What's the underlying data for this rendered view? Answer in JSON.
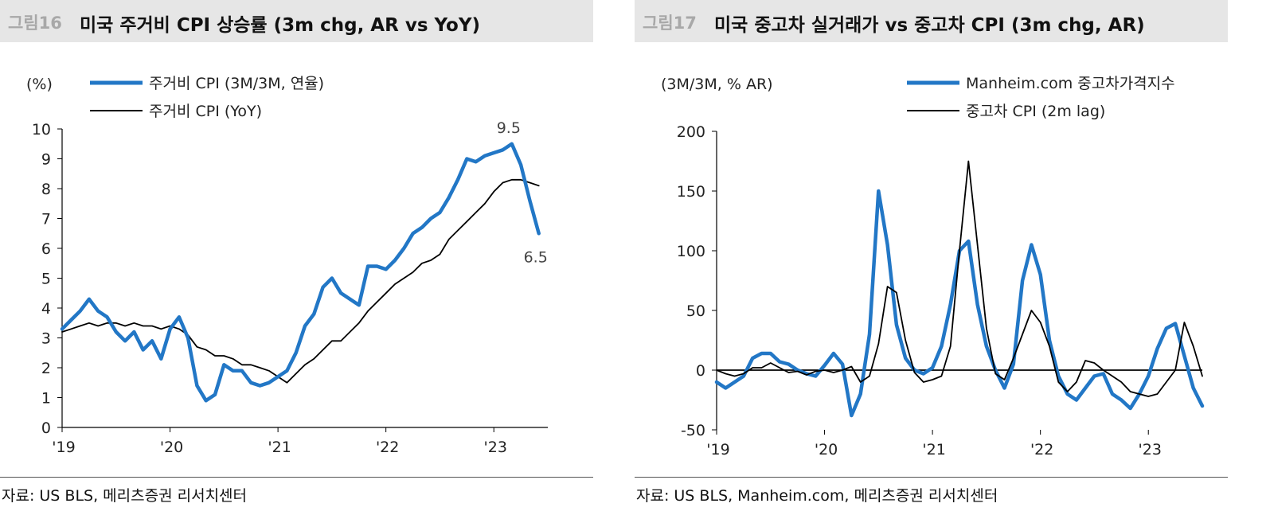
{
  "charts": [
    {
      "figure_number": "그림16",
      "title": "미국 주거비 CPI 상승률 (3m chg, AR vs YoY)",
      "unit_label": "(%)",
      "source": "자료: US BLS, 메리츠증권 리서치센터",
      "colors": {
        "series1": "#2277c6",
        "series2": "#000000"
      }
    },
    {
      "figure_number": "그림17",
      "title": "미국 중고차 실거래가 vs 중고차 CPI (3m chg, AR)",
      "unit_label": "(3M/3M, % AR)",
      "source": "자료: US BLS, Manheim.com, 메리츠증권 리서치센터",
      "colors": {
        "series1": "#2277c6",
        "series2": "#000000"
      }
    }
  ],
  "chart_data": [
    {
      "type": "line",
      "x_tick_labels": [
        "'19",
        "'20",
        "'21",
        "'22",
        "'23"
      ],
      "x_start": "2019-01",
      "ylim": [
        0,
        10
      ],
      "yticks": [
        0,
        1,
        2,
        3,
        4,
        5,
        6,
        7,
        8,
        9,
        10
      ],
      "grid": false,
      "legend_position": "top-left",
      "annotations": [
        {
          "text": "9.5",
          "series": 0,
          "index": 50
        },
        {
          "text": "6.5",
          "series": 0,
          "index": 53
        }
      ],
      "series": [
        {
          "name": "주거비 CPI (3M/3M, 연율)",
          "values": [
            3.3,
            3.6,
            3.9,
            4.3,
            3.9,
            3.7,
            3.2,
            2.9,
            3.2,
            2.6,
            2.9,
            2.3,
            3.3,
            3.7,
            3.0,
            1.4,
            0.9,
            1.1,
            2.1,
            1.9,
            1.9,
            1.5,
            1.4,
            1.5,
            1.7,
            1.9,
            2.5,
            3.4,
            3.8,
            4.7,
            5.0,
            4.5,
            4.3,
            4.1,
            5.4,
            5.4,
            5.3,
            5.6,
            6.0,
            6.5,
            6.7,
            7.0,
            7.2,
            7.7,
            8.3,
            9.0,
            8.9,
            9.1,
            9.2,
            9.3,
            9.5,
            8.8,
            7.6,
            6.5
          ]
        },
        {
          "name": "주거비 CPI (YoY)",
          "values": [
            3.2,
            3.3,
            3.4,
            3.5,
            3.4,
            3.5,
            3.5,
            3.4,
            3.5,
            3.4,
            3.4,
            3.3,
            3.4,
            3.3,
            3.1,
            2.7,
            2.6,
            2.4,
            2.4,
            2.3,
            2.1,
            2.1,
            2.0,
            1.9,
            1.7,
            1.5,
            1.8,
            2.1,
            2.3,
            2.6,
            2.9,
            2.9,
            3.2,
            3.5,
            3.9,
            4.2,
            4.5,
            4.8,
            5.0,
            5.2,
            5.5,
            5.6,
            5.8,
            6.3,
            6.6,
            6.9,
            7.2,
            7.5,
            7.9,
            8.2,
            8.3,
            8.3,
            8.2,
            8.1
          ]
        }
      ]
    },
    {
      "type": "line",
      "x_tick_labels": [
        "'19",
        "'20",
        "'21",
        "'22",
        "'23"
      ],
      "x_start": "2019-01",
      "ylim": [
        -50,
        200
      ],
      "yticks": [
        -50,
        0,
        50,
        100,
        150,
        200
      ],
      "grid": false,
      "legend_position": "top-right",
      "series": [
        {
          "name": "Manheim.com 중고차가격지수",
          "values": [
            -10,
            -15,
            -10,
            -5,
            10,
            14,
            14,
            7,
            5,
            0,
            -3,
            -5,
            4,
            14,
            5,
            -38,
            -20,
            30,
            150,
            105,
            38,
            10,
            0,
            -3,
            2,
            20,
            55,
            100,
            108,
            55,
            20,
            0,
            -15,
            5,
            75,
            105,
            80,
            25,
            -5,
            -20,
            -25,
            -15,
            -5,
            -3,
            -20,
            -25,
            -32,
            -20,
            -5,
            18,
            35,
            39,
            12,
            -15,
            -30
          ]
        },
        {
          "name": "중고차 CPI (2m lag)",
          "values": [
            0,
            -3,
            -5,
            -3,
            2,
            2,
            6,
            2,
            -2,
            -1,
            -4,
            -1,
            0,
            -2,
            0,
            3,
            -10,
            -5,
            22,
            70,
            65,
            25,
            -2,
            -10,
            -8,
            -5,
            20,
            100,
            175,
            105,
            35,
            -3,
            -8,
            10,
            30,
            50,
            40,
            20,
            -10,
            -18,
            -10,
            8,
            6,
            0,
            -5,
            -10,
            -18,
            -20,
            -22,
            -20,
            -10,
            0,
            40,
            20,
            -5
          ]
        }
      ]
    }
  ]
}
